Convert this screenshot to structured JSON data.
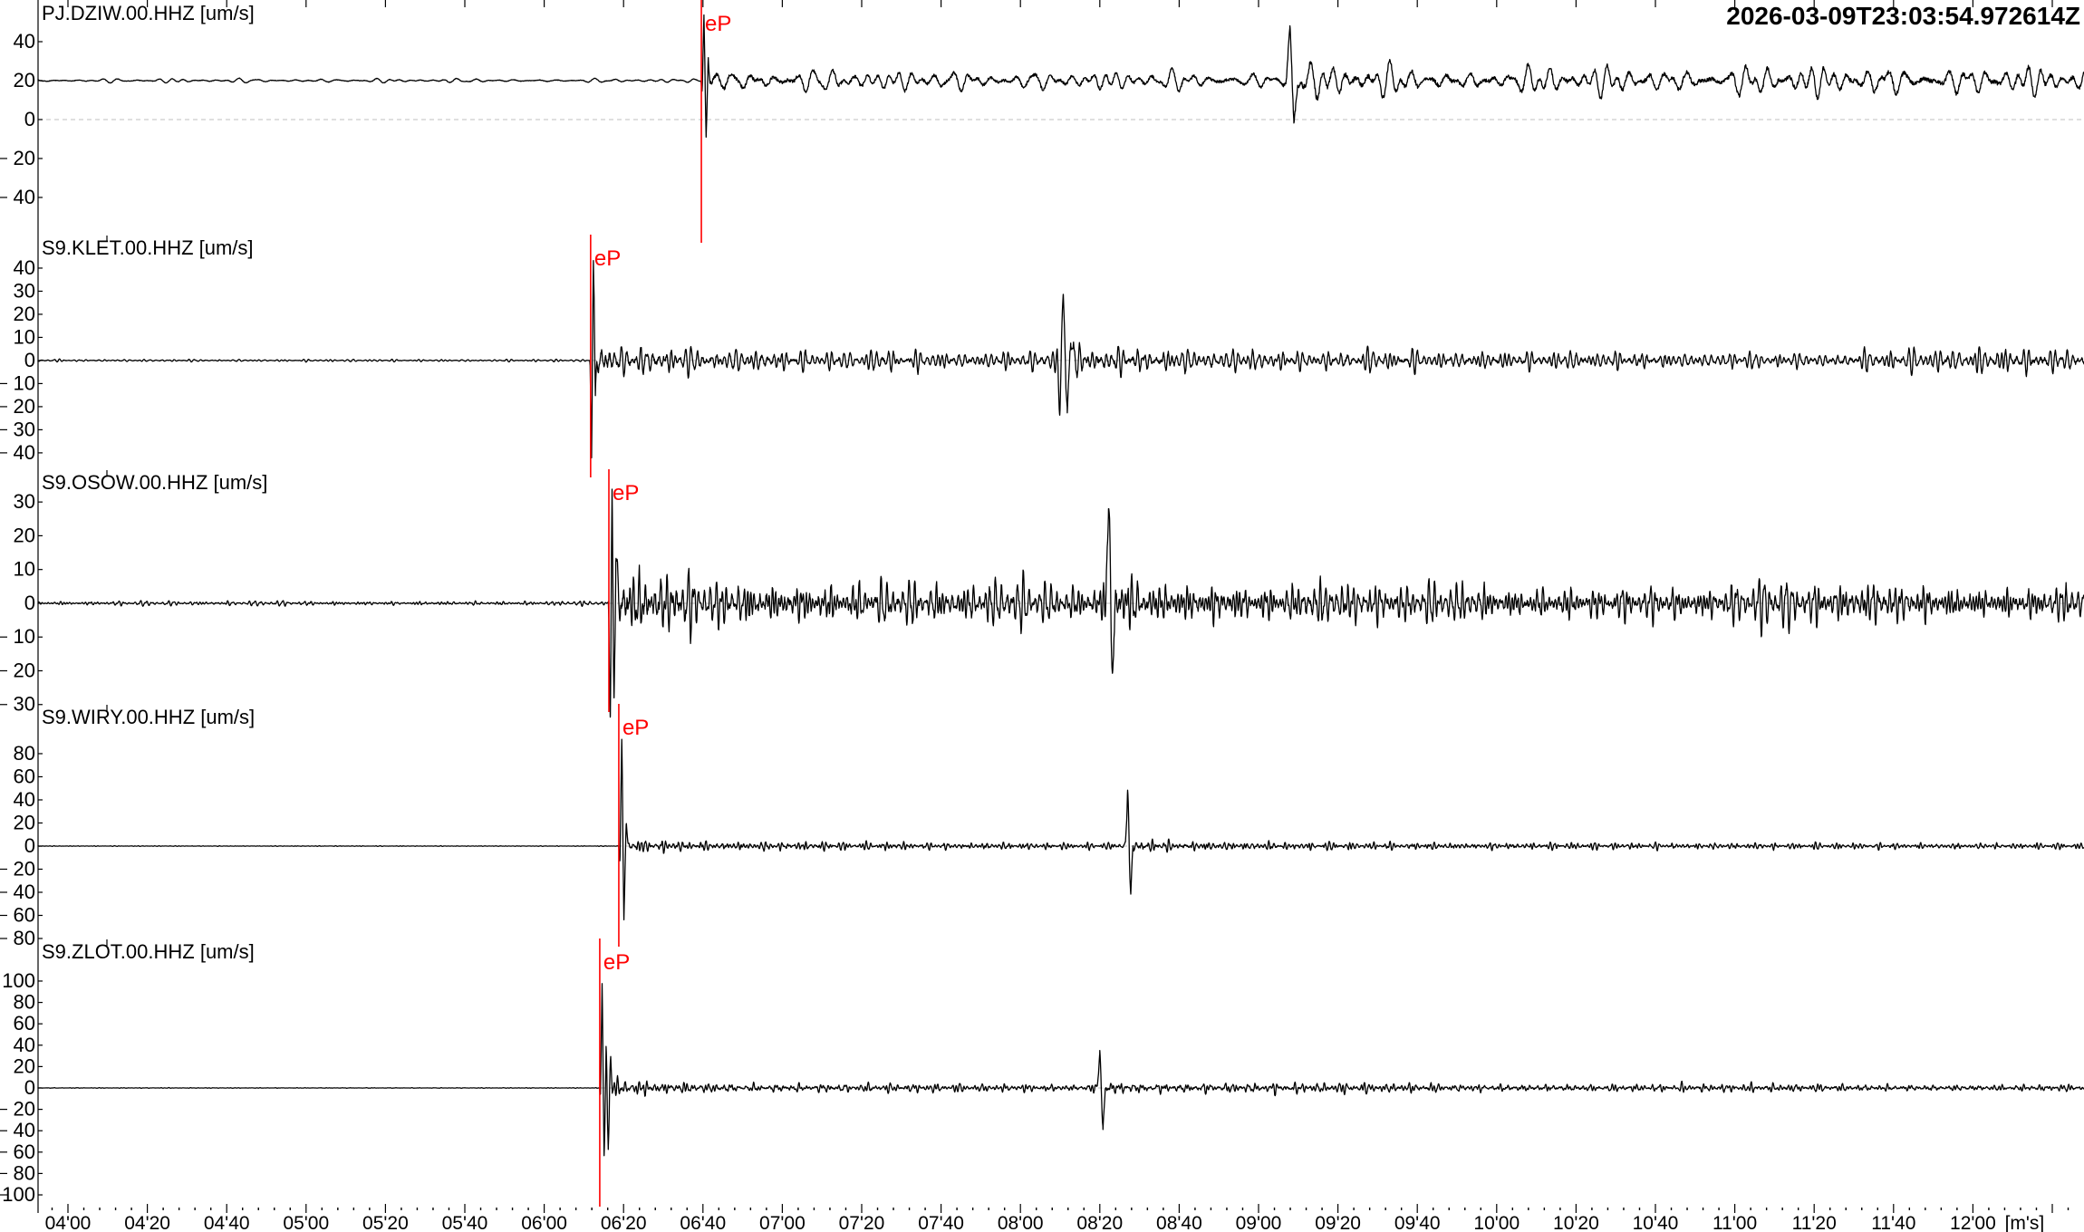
{
  "header": {
    "timestamp": "2026-03-09T23:03:54.972614Z"
  },
  "colors": {
    "background": "#ffffff",
    "waveform": "#000000",
    "pick_marker": "#ff0000",
    "zero_line": "#bfbfbf",
    "axis": "#000000",
    "text": "#000000"
  },
  "chart_data": {
    "type": "line",
    "kind": "seismogram-multitrace",
    "amplitude_units": "um/s",
    "time_axis": {
      "unit_label": "[m's]",
      "start_s": 232.47,
      "end_s": 748.0,
      "major_tick_s": 20,
      "minor_tick_s": 4,
      "tick_labels": [
        "04'00",
        "04'20",
        "04'40",
        "05'00",
        "05'20",
        "05'40",
        "06'00",
        "06'20",
        "06'40",
        "07'00",
        "07'20",
        "07'40",
        "08'00",
        "08'20",
        "08'40",
        "09'00",
        "09'20",
        "09'40",
        "10'00",
        "10'20",
        "10'40",
        "11'00",
        "11'20",
        "11'40",
        "12'00"
      ]
    },
    "traces": [
      {
        "label": "PJ.DZIW.00.HHZ [um/s]",
        "ytick_values": [
          40,
          20,
          0,
          -20,
          -40
        ],
        "ytick_labels": [
          "40",
          "20",
          "0",
          "20",
          "40"
        ],
        "ylim": [
          -59.1,
          61.4
        ],
        "baseline": 20,
        "pick": {
          "label": "eP",
          "time_s": 399.6
        },
        "dominant_period_s": 3.0,
        "seed": 101,
        "envelope": [
          [
            232.5,
            1.0
          ],
          [
            399.4,
            1.0
          ],
          [
            400.2,
            9
          ],
          [
            409,
            7.5
          ],
          [
            447,
            6
          ],
          [
            516,
            5.5
          ],
          [
            545,
            5.5
          ],
          [
            549,
            11
          ],
          [
            560,
            9
          ],
          [
            595,
            7.5
          ],
          [
            635,
            8
          ],
          [
            695,
            8.5
          ],
          [
            748,
            8
          ]
        ],
        "spikes": [
          [
            399.85,
            -8,
            0.3
          ],
          [
            400.25,
            33,
            0.5
          ],
          [
            400.8,
            -29,
            0.5
          ],
          [
            401.35,
            12,
            0.4
          ],
          [
            547.9,
            25,
            0.9
          ],
          [
            548.9,
            -22,
            0.9
          ]
        ]
      },
      {
        "label": "S9.KLET.00.HHZ [um/s]",
        "ytick_values": [
          40,
          30,
          20,
          10,
          0,
          -10,
          -20,
          -30,
          -40
        ],
        "ytick_labels": [
          "40",
          "30",
          "20",
          "10",
          "0",
          "10",
          "20",
          "30",
          "40"
        ],
        "ylim": [
          -47.1,
          54.5
        ],
        "baseline": 0,
        "pick": {
          "label": "eP",
          "time_s": 371.7
        },
        "dominant_period_s": 0.95,
        "seed": 202,
        "envelope": [
          [
            232.5,
            0.5
          ],
          [
            371.5,
            0.5
          ],
          [
            372.4,
            10
          ],
          [
            379,
            7
          ],
          [
            397,
            5.5
          ],
          [
            427,
            4.5
          ],
          [
            487,
            4
          ],
          [
            490,
            7.5
          ],
          [
            493,
            8.5
          ],
          [
            502,
            6.5
          ],
          [
            522,
            5
          ],
          [
            552,
            4.5
          ],
          [
            612,
            4
          ],
          [
            682,
            3.5
          ],
          [
            728,
            6
          ],
          [
            748,
            4.5
          ]
        ],
        "spikes": [
          [
            371.95,
            -42,
            0.4
          ],
          [
            372.4,
            46,
            0.45
          ],
          [
            372.9,
            -20,
            0.35
          ],
          [
            489.9,
            -20,
            0.6
          ],
          [
            490.8,
            30,
            0.7
          ],
          [
            491.8,
            -24,
            0.7
          ],
          [
            492.7,
            14,
            0.5
          ]
        ]
      },
      {
        "label": "S9.OSOW.00.HHZ [um/s]",
        "ytick_values": [
          30,
          20,
          10,
          0,
          -10,
          -20,
          -30
        ],
        "ytick_labels": [
          "30",
          "20",
          "10",
          "0",
          "10",
          "20",
          "30"
        ],
        "ylim": [
          -29.8,
          39.7
        ],
        "baseline": 0,
        "pick": {
          "label": "eP",
          "time_s": 376.3
        },
        "dominant_period_s": 1.15,
        "seed": 303,
        "envelope": [
          [
            232.5,
            0.6
          ],
          [
            376.1,
            0.6
          ],
          [
            377.4,
            12
          ],
          [
            386,
            9
          ],
          [
            416,
            7
          ],
          [
            456,
            6
          ],
          [
            497,
            5.5
          ],
          [
            501,
            8
          ],
          [
            504,
            9
          ],
          [
            513,
            7
          ],
          [
            545,
            6
          ],
          [
            595,
            5.5
          ],
          [
            645,
            5
          ],
          [
            685,
            6.5
          ],
          [
            715,
            5.5
          ],
          [
            748,
            5.5
          ]
        ],
        "spikes": [
          [
            376.65,
            -30,
            0.45
          ],
          [
            377.1,
            26,
            0.4
          ],
          [
            377.6,
            -24,
            0.45
          ],
          [
            378.1,
            20,
            0.4
          ],
          [
            502.2,
            31,
            0.7
          ],
          [
            503.2,
            -20,
            0.7
          ]
        ]
      },
      {
        "label": "S9.WIRY.00.HHZ [um/s]",
        "ytick_values": [
          80,
          60,
          40,
          20,
          0,
          -20,
          -40,
          -60,
          -80
        ],
        "ytick_labels": [
          "80",
          "60",
          "40",
          "20",
          "0",
          "20",
          "40",
          "60",
          "80"
        ],
        "ylim": [
          -80,
          123.1
        ],
        "baseline": 0,
        "pick": {
          "label": "eP",
          "time_s": 378.8
        },
        "dominant_period_s": 0.85,
        "seed": 404,
        "envelope": [
          [
            232.5,
            0.25
          ],
          [
            378.6,
            0.25
          ],
          [
            380.1,
            6.5
          ],
          [
            387,
            5
          ],
          [
            407,
            4
          ],
          [
            447,
            3.2
          ],
          [
            502,
            2.8
          ],
          [
            506,
            4
          ],
          [
            509.5,
            6.5
          ],
          [
            517,
            4.5
          ],
          [
            540,
            3.5
          ],
          [
            595,
            3
          ],
          [
            655,
            2.8
          ],
          [
            748,
            2.5
          ]
        ],
        "spikes": [
          [
            379.1,
            -16,
            0.35
          ],
          [
            379.55,
            88,
            0.5
          ],
          [
            380.1,
            -62,
            0.5
          ],
          [
            380.7,
            24,
            0.4
          ],
          [
            507.0,
            47,
            0.55
          ],
          [
            507.8,
            -42,
            0.55
          ]
        ]
      },
      {
        "label": "S9.ZLOT.00.HHZ [um/s]",
        "ytick_values": [
          100,
          80,
          60,
          40,
          20,
          0,
          -20,
          -40,
          -60,
          -80,
          -100
        ],
        "ytick_labels": [
          "100",
          "80",
          "60",
          "40",
          "20",
          "0",
          "20",
          "40",
          "60",
          "80",
          "100"
        ],
        "ylim": [
          -111,
          139.8
        ],
        "baseline": 0,
        "pick": {
          "label": "eP",
          "time_s": 374.0
        },
        "dominant_period_s": 0.95,
        "seed": 505,
        "envelope": [
          [
            232.5,
            0.25
          ],
          [
            373.8,
            0.25
          ],
          [
            375.1,
            9
          ],
          [
            382,
            7
          ],
          [
            402,
            5
          ],
          [
            447,
            3.8
          ],
          [
            495,
            3.2
          ],
          [
            499,
            5
          ],
          [
            502.5,
            7.5
          ],
          [
            510,
            5.5
          ],
          [
            540,
            4.5
          ],
          [
            595,
            4
          ],
          [
            655,
            3.5
          ],
          [
            748,
            3.2
          ]
        ],
        "spikes": [
          [
            374.25,
            -12,
            0.3
          ],
          [
            374.6,
            95,
            0.45
          ],
          [
            375.1,
            -62,
            0.5
          ],
          [
            375.6,
            38,
            0.4
          ],
          [
            376.15,
            -56,
            0.45
          ],
          [
            376.75,
            28,
            0.4
          ],
          [
            500.0,
            34,
            0.6
          ],
          [
            500.8,
            -40,
            0.6
          ]
        ]
      }
    ]
  }
}
